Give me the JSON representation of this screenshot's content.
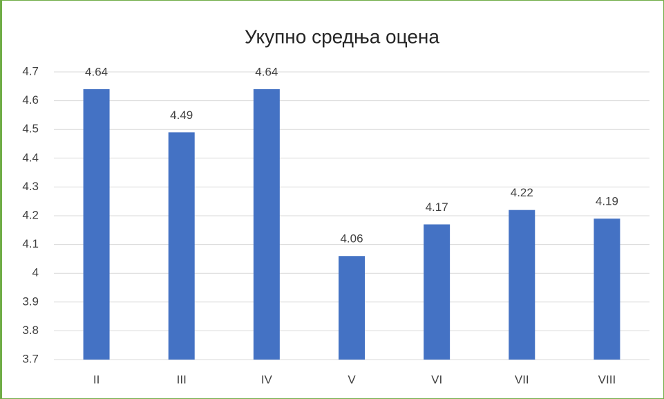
{
  "chart_data": {
    "type": "bar",
    "title": "Укупно средња оцена",
    "categories": [
      "II",
      "III",
      "IV",
      "V",
      "VI",
      "VII",
      "VIII"
    ],
    "values": [
      4.64,
      4.49,
      4.64,
      4.06,
      4.17,
      4.22,
      4.19
    ],
    "color": "#4472c4",
    "ylim": [
      3.7,
      4.7
    ],
    "yticks": [
      3.7,
      3.8,
      3.9,
      4,
      4.1,
      4.2,
      4.3,
      4.4,
      4.5,
      4.6,
      4.7
    ],
    "grid": true
  }
}
